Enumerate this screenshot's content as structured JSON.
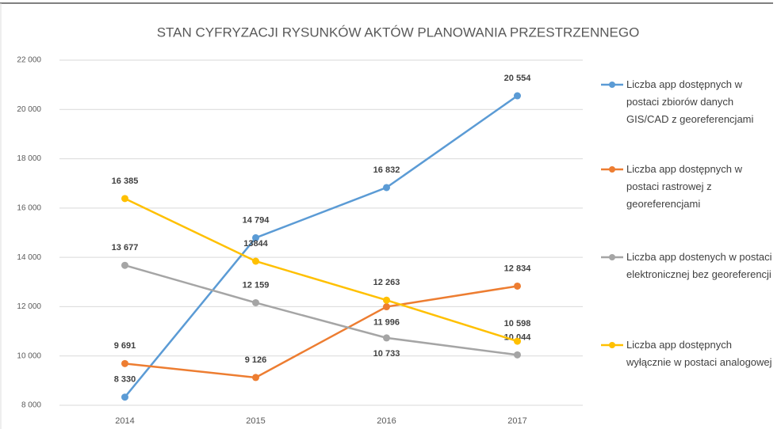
{
  "chart_data": {
    "type": "line",
    "title": "STAN CYFRYZACJI RYSUNKÓW AKTÓW PLANOWANIA PRZESTRZENNEGO",
    "categories": [
      "2014",
      "2015",
      "2016",
      "2017"
    ],
    "series": [
      {
        "name": "Liczba app dostępnych  w postaci zbiorów danych GIS/CAD z georeferencjami",
        "color": "#5b9bd5",
        "values": [
          8330,
          14794,
          16832,
          20554
        ],
        "value_labels": [
          "8 330",
          "14 794",
          "16 832",
          "20 554"
        ]
      },
      {
        "name": "Liczba app dostępnych w postaci rastrowej z georeferencjami",
        "color": "#ed7d31",
        "values": [
          9691,
          9126,
          11996,
          12834
        ],
        "value_labels": [
          "9 691",
          "9 126",
          "11 996",
          "12 834"
        ]
      },
      {
        "name": "Liczba app dostenych w postaci elektronicznej bez georeferencji",
        "color": "#a5a5a5",
        "values": [
          13677,
          12159,
          10733,
          10044
        ],
        "value_labels": [
          "13 677",
          "12 159",
          "10 733",
          "10 044"
        ]
      },
      {
        "name": "Liczba  app dostępnych wyłącznie w postaci analogowej",
        "color": "#ffc000",
        "values": [
          16385,
          13844,
          12263,
          10598
        ],
        "value_labels": [
          "16 385",
          "13844",
          "12 263",
          "10 598"
        ]
      }
    ],
    "ylim": [
      8000,
      22000
    ],
    "yticks": [
      {
        "value": 8000,
        "label": "8 000"
      },
      {
        "value": 10000,
        "label": "10 000"
      },
      {
        "value": 12000,
        "label": "12 000"
      },
      {
        "value": 14000,
        "label": "14 000"
      },
      {
        "value": 16000,
        "label": "16 000"
      },
      {
        "value": 18000,
        "label": "18 000"
      },
      {
        "value": 20000,
        "label": "20 000"
      },
      {
        "value": 22000,
        "label": "22 000"
      }
    ],
    "grid": true,
    "legend": "right"
  }
}
